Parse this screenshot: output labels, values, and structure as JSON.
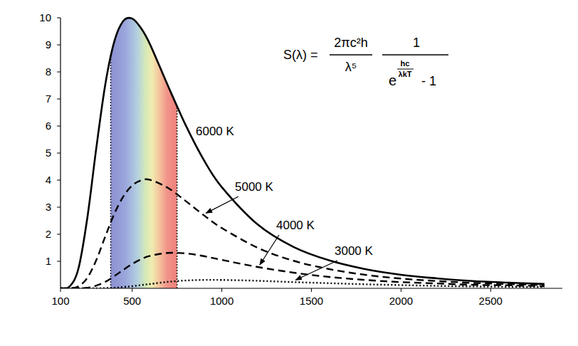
{
  "chart_data": {
    "type": "line",
    "x": [
      100,
      150,
      200,
      250,
      300,
      350,
      400,
      450,
      500,
      550,
      600,
      700,
      800,
      900,
      1000,
      1200,
      1400,
      1600,
      1800,
      2000,
      2200,
      2400,
      2600,
      2800
    ],
    "series": [
      {
        "name": "6000 K",
        "color": "#000000",
        "line_style": "solid",
        "values": [
          0,
          0.06,
          0.73,
          2.62,
          5.2,
          7.54,
          9.12,
          9.88,
          9.97,
          9.61,
          9.01,
          7.48,
          6.01,
          4.74,
          3.74,
          2.36,
          1.53,
          1.03,
          0.71,
          0.5,
          0.37,
          0.27,
          0.21,
          0.16
        ]
      },
      {
        "name": "5000 K",
        "color": "#000000",
        "line_style": "dashed",
        "values": [
          0,
          0,
          0.07,
          0.39,
          1.05,
          1.92,
          2.75,
          3.39,
          3.8,
          3.99,
          4.01,
          3.71,
          3.22,
          2.7,
          2.23,
          1.5,
          1.02,
          0.71,
          0.5,
          0.36,
          0.27,
          0.2,
          0.16,
          0.12
        ]
      },
      {
        "name": "4000 K",
        "color": "#000000",
        "line_style": "dashed",
        "values": [
          0,
          0,
          0,
          0.02,
          0.1,
          0.24,
          0.45,
          0.68,
          0.9,
          1.08,
          1.2,
          1.31,
          1.29,
          1.19,
          1.05,
          0.79,
          0.58,
          0.42,
          0.31,
          0.23,
          0.18,
          0.13,
          0.11,
          0.08
        ]
      },
      {
        "name": "3000 K",
        "color": "#000000",
        "line_style": "dotted",
        "values": [
          0,
          0,
          0,
          0,
          0,
          0.01,
          0.02,
          0.05,
          0.08,
          0.12,
          0.16,
          0.24,
          0.29,
          0.31,
          0.31,
          0.28,
          0.23,
          0.19,
          0.15,
          0.12,
          0.09,
          0.07,
          0.06,
          0.05
        ]
      }
    ],
    "xlim": [
      100,
      2900
    ],
    "xticks": [
      100,
      500,
      1000,
      1500,
      2000,
      2500
    ],
    "ylim": [
      0,
      10
    ],
    "yticks": [
      1,
      2,
      3,
      4,
      5,
      6,
      7,
      8,
      9,
      10
    ],
    "grid": false,
    "spectrum_band": [
      380,
      750
    ],
    "formula": {
      "lhs": "S(λ) =",
      "numerator_1": "2πc²h",
      "denominator_1": "λ⁵",
      "numerator_2": "1",
      "base": "e",
      "exponent_numerator": "hc",
      "exponent_denominator": "λkT",
      "minus_one": "- 1"
    }
  }
}
